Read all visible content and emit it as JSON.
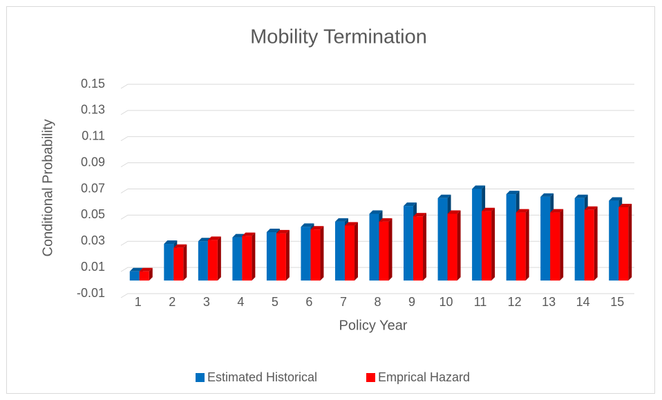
{
  "chart_data": {
    "type": "bar",
    "title": "Mobility Termination",
    "x_label": "Policy Year",
    "y_label": "Conditional Probability",
    "categories": [
      "1",
      "2",
      "3",
      "4",
      "5",
      "6",
      "7",
      "8",
      "9",
      "10",
      "11",
      "12",
      "13",
      "14",
      "15"
    ],
    "series": [
      {
        "name": "Estimated Historical",
        "color": "#0070c0",
        "values": [
          0.007,
          0.028,
          0.03,
          0.033,
          0.037,
          0.041,
          0.045,
          0.051,
          0.057,
          0.063,
          0.07,
          0.066,
          0.064,
          0.063,
          0.061
        ]
      },
      {
        "name": "Emprical Hazard",
        "color": "#ff0000",
        "values": [
          0.007,
          0.025,
          0.031,
          0.034,
          0.036,
          0.039,
          0.042,
          0.045,
          0.049,
          0.051,
          0.053,
          0.052,
          0.052,
          0.054,
          0.056
        ]
      }
    ],
    "ylim": [
      -0.01,
      0.15
    ],
    "yticks": [
      -0.01,
      0.01,
      0.03,
      0.05,
      0.07,
      0.09,
      0.11,
      0.13,
      0.15
    ],
    "grid": true,
    "legend": "bottom"
  }
}
